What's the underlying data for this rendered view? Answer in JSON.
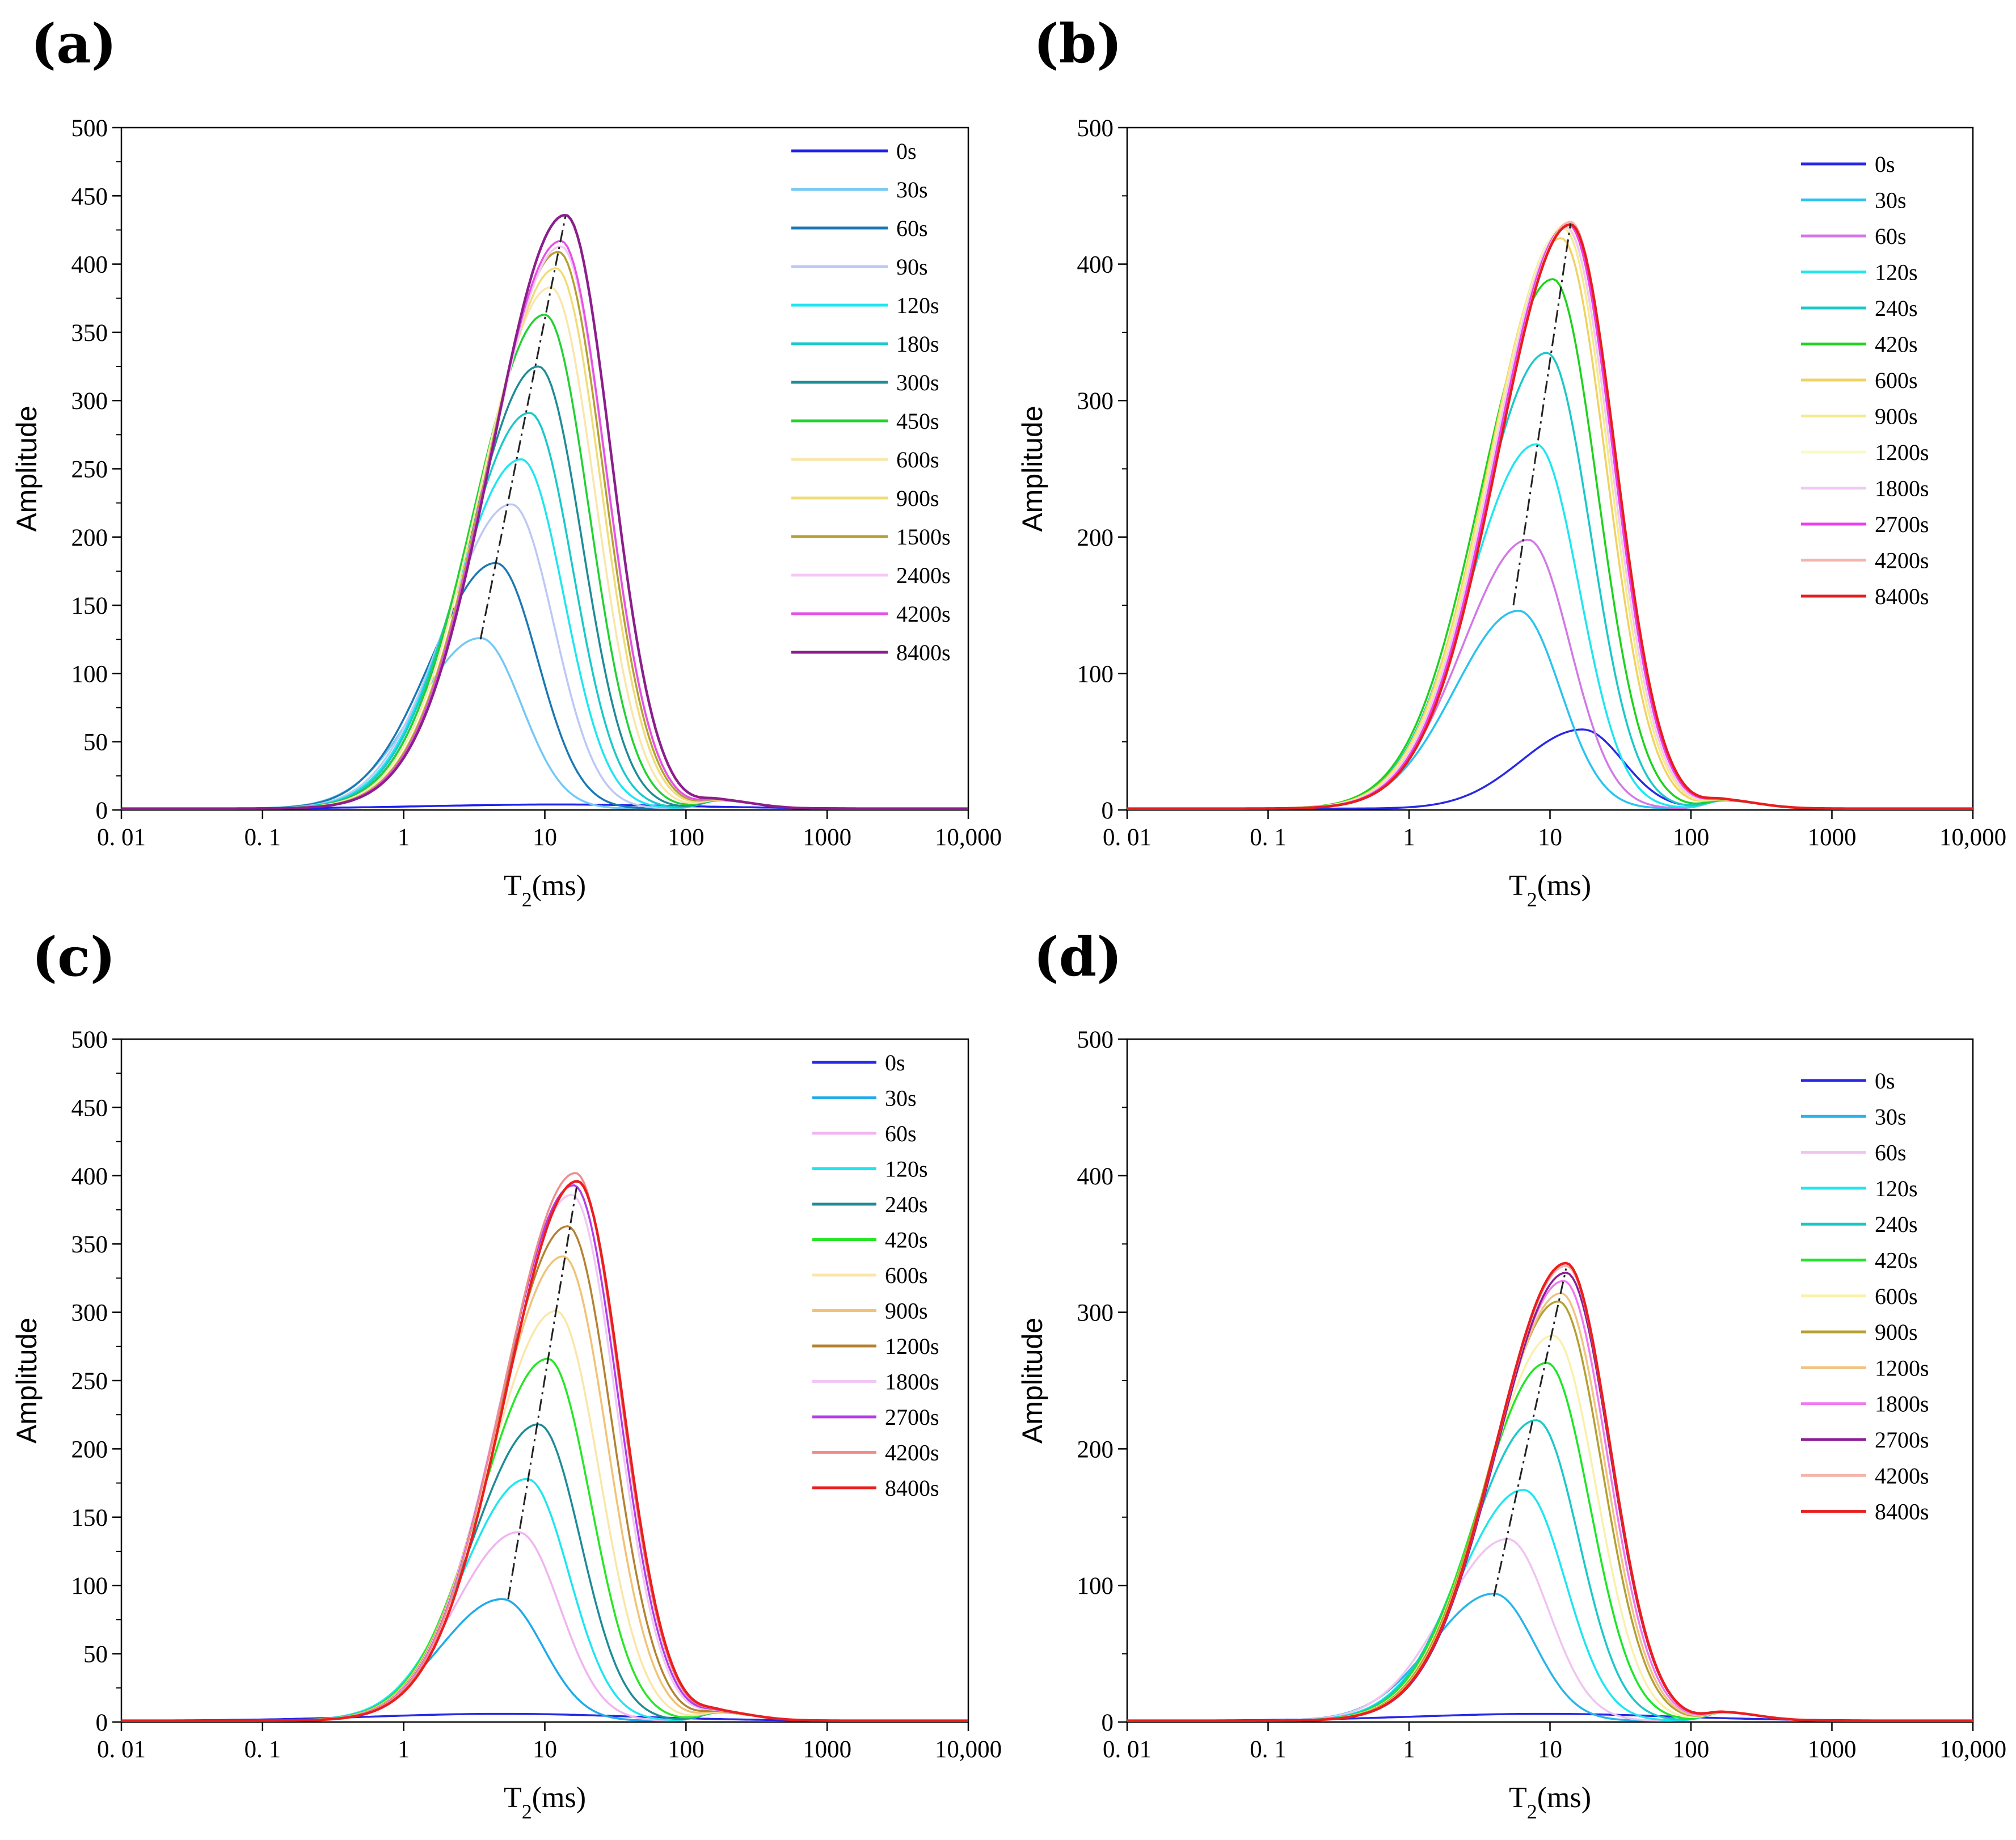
{
  "chart_data": [
    {
      "panel": "(a)",
      "type": "line",
      "xscale": "log",
      "xlim": [
        0.01,
        10000
      ],
      "ylim": [
        0,
        500
      ],
      "xticks": [
        0.01,
        0.1,
        1,
        10,
        100,
        1000,
        10000
      ],
      "xtick_labels": [
        "0. 01",
        "0. 1",
        "1",
        "10",
        "100",
        "1000",
        "10,000"
      ],
      "yticks": [
        0,
        50,
        100,
        150,
        200,
        250,
        300,
        350,
        400,
        450,
        500
      ],
      "ytick_labels": [
        "0",
        "50",
        "100",
        "150",
        "200",
        "250",
        "300",
        "350",
        "400",
        "450",
        "500"
      ],
      "ylabel": "Amplitude",
      "xlabel": "T",
      "xlabel_sub": "2",
      "xlabel_unit": "(ms)",
      "legend_position": "top-right",
      "trend_line": {
        "peak_t2_range": [
          3.5,
          14
        ],
        "peak_amp_range": [
          125,
          435
        ]
      },
      "series": [
        {
          "name": "0s",
          "color": "#1f1ff0",
          "peak_t2": 12,
          "peak_amp": 3
        },
        {
          "name": "30s",
          "color": "#73c8f5",
          "peak_t2": 3.5,
          "peak_amp": 125
        },
        {
          "name": "60s",
          "color": "#1a78b4",
          "peak_t2": 4.5,
          "peak_amp": 180
        },
        {
          "name": "90s",
          "color": "#bcc8f5",
          "peak_t2": 5.8,
          "peak_amp": 223
        },
        {
          "name": "120s",
          "color": "#1ee6f0",
          "peak_t2": 6.8,
          "peak_amp": 256
        },
        {
          "name": "180s",
          "color": "#1cc8c8",
          "peak_t2": 7.8,
          "peak_amp": 290
        },
        {
          "name": "300s",
          "color": "#1e8c96",
          "peak_t2": 9,
          "peak_amp": 324
        },
        {
          "name": "450s",
          "color": "#22d232",
          "peak_t2": 10,
          "peak_amp": 362
        },
        {
          "name": "600s",
          "color": "#fae6aa",
          "peak_t2": 11,
          "peak_amp": 382
        },
        {
          "name": "900s",
          "color": "#f0dc78",
          "peak_t2": 12,
          "peak_amp": 396
        },
        {
          "name": "1500s",
          "color": "#b4a032",
          "peak_t2": 12.5,
          "peak_amp": 408
        },
        {
          "name": "2400s",
          "color": "#f5c8f5",
          "peak_t2": 13,
          "peak_amp": 412
        },
        {
          "name": "4200s",
          "color": "#e650e6",
          "peak_t2": 13,
          "peak_amp": 416
        },
        {
          "name": "8400s",
          "color": "#8c1e8c",
          "peak_t2": 14,
          "peak_amp": 435
        }
      ]
    },
    {
      "panel": "(b)",
      "type": "line",
      "xscale": "log",
      "xlim": [
        0.01,
        10000
      ],
      "ylim": [
        0,
        500
      ],
      "xticks": [
        0.01,
        0.1,
        1,
        10,
        100,
        1000,
        10000
      ],
      "xtick_labels": [
        "0. 01",
        "0. 1",
        "1",
        "10",
        "100",
        "1000",
        "10,000"
      ],
      "yticks": [
        0,
        100,
        200,
        300,
        400,
        500
      ],
      "ytick_labels": [
        "0",
        "100",
        "200",
        "300",
        "400",
        "500"
      ],
      "ylabel": "Amplitude",
      "xlabel": "T",
      "xlabel_sub": "2",
      "xlabel_unit": "(ms)",
      "legend_position": "top-right",
      "trend_line": {
        "peak_t2_range": [
          5.5,
          14
        ],
        "peak_amp_range": [
          150,
          430
        ]
      },
      "series": [
        {
          "name": "0s",
          "color": "#2828e6",
          "peak_t2": 17,
          "peak_amp": 58
        },
        {
          "name": "30s",
          "color": "#28c3f0",
          "peak_t2": 6,
          "peak_amp": 145
        },
        {
          "name": "60s",
          "color": "#d278e6",
          "peak_t2": 7,
          "peak_amp": 197
        },
        {
          "name": "120s",
          "color": "#1ee6f0",
          "peak_t2": 8,
          "peak_amp": 267
        },
        {
          "name": "240s",
          "color": "#1cc8c8",
          "peak_t2": 9.5,
          "peak_amp": 334
        },
        {
          "name": "420s",
          "color": "#1ed21e",
          "peak_t2": 10.5,
          "peak_amp": 388
        },
        {
          "name": "600s",
          "color": "#f0d264",
          "peak_t2": 12,
          "peak_amp": 418
        },
        {
          "name": "900s",
          "color": "#f5eb8c",
          "peak_t2": 12.5,
          "peak_amp": 425
        },
        {
          "name": "1200s",
          "color": "#fafac8",
          "peak_t2": 13,
          "peak_amp": 428
        },
        {
          "name": "1800s",
          "color": "#f0c8f5",
          "peak_t2": 13,
          "peak_amp": 426
        },
        {
          "name": "2700s",
          "color": "#f03cf0",
          "peak_t2": 13.5,
          "peak_amp": 428
        },
        {
          "name": "4200s",
          "color": "#f5b4aa",
          "peak_t2": 14,
          "peak_amp": 430
        },
        {
          "name": "8400s",
          "color": "#e61e1e",
          "peak_t2": 14,
          "peak_amp": 428
        }
      ]
    },
    {
      "panel": "(c)",
      "type": "line",
      "xscale": "log",
      "xlim": [
        0.01,
        10000
      ],
      "ylim": [
        0,
        500
      ],
      "xticks": [
        0.01,
        0.1,
        1,
        10,
        100,
        1000,
        10000
      ],
      "xtick_labels": [
        "0. 01",
        "0. 1",
        "1",
        "10",
        "100",
        "1000",
        "10,000"
      ],
      "yticks": [
        0,
        50,
        100,
        150,
        200,
        250,
        300,
        350,
        400,
        450,
        500
      ],
      "ytick_labels": [
        "0",
        "50",
        "100",
        "150",
        "200",
        "250",
        "300",
        "350",
        "400",
        "450",
        "500"
      ],
      "ylabel": "Amplitude",
      "xlabel": "T",
      "xlabel_sub": "2",
      "xlabel_unit": "(ms)",
      "legend_position": "top-right",
      "trend_line": {
        "peak_t2_range": [
          5.5,
          17
        ],
        "peak_amp_range": [
          90,
          395
        ]
      },
      "series": [
        {
          "name": "0s",
          "color": "#2828e6",
          "peak_t2": 5,
          "peak_amp": 5
        },
        {
          "name": "30s",
          "color": "#1eaaeb",
          "peak_t2": 5,
          "peak_amp": 89
        },
        {
          "name": "60s",
          "color": "#f0b4f0",
          "peak_t2": 6.5,
          "peak_amp": 138
        },
        {
          "name": "120s",
          "color": "#1ee6f0",
          "peak_t2": 7.5,
          "peak_amp": 177
        },
        {
          "name": "240s",
          "color": "#1e8c96",
          "peak_t2": 9,
          "peak_amp": 217
        },
        {
          "name": "420s",
          "color": "#28e628",
          "peak_t2": 10.5,
          "peak_amp": 265
        },
        {
          "name": "600s",
          "color": "#fae6aa",
          "peak_t2": 12,
          "peak_amp": 300
        },
        {
          "name": "900s",
          "color": "#f0c378",
          "peak_t2": 13.5,
          "peak_amp": 340
        },
        {
          "name": "1200s",
          "color": "#b48232",
          "peak_t2": 14.5,
          "peak_amp": 362
        },
        {
          "name": "1800s",
          "color": "#f0c8f5",
          "peak_t2": 15.5,
          "peak_amp": 385
        },
        {
          "name": "2700s",
          "color": "#b43ceb",
          "peak_t2": 16,
          "peak_amp": 392
        },
        {
          "name": "4200s",
          "color": "#f08c8c",
          "peak_t2": 16.5,
          "peak_amp": 401
        },
        {
          "name": "8400s",
          "color": "#eb1e1e",
          "peak_t2": 17,
          "peak_amp": 395
        }
      ]
    },
    {
      "panel": "(d)",
      "type": "line",
      "xscale": "log",
      "xlim": [
        0.01,
        10000
      ],
      "ylim": [
        0,
        500
      ],
      "xticks": [
        0.01,
        0.1,
        1,
        10,
        100,
        1000,
        10000
      ],
      "xtick_labels": [
        "0. 01",
        "0. 1",
        "1",
        "10",
        "100",
        "1000",
        "10,000"
      ],
      "yticks": [
        0,
        100,
        200,
        300,
        400,
        500
      ],
      "ytick_labels": [
        "0",
        "100",
        "200",
        "300",
        "400",
        "500"
      ],
      "ylabel": "Amplitude",
      "xlabel": "T",
      "xlabel_sub": "2",
      "xlabel_unit": "(ms)",
      "legend_position": "top-right",
      "trend_line": {
        "peak_t2_range": [
          4,
          13
        ],
        "peak_amp_range": [
          92,
          332
        ]
      },
      "series": [
        {
          "name": "0s",
          "color": "#2828e6",
          "peak_t2": 9,
          "peak_amp": 5
        },
        {
          "name": "30s",
          "color": "#28b4eb",
          "peak_t2": 4,
          "peak_amp": 93
        },
        {
          "name": "60s",
          "color": "#f0c3f0",
          "peak_t2": 5,
          "peak_amp": 133
        },
        {
          "name": "120s",
          "color": "#1ee6f0",
          "peak_t2": 6.5,
          "peak_amp": 169
        },
        {
          "name": "240s",
          "color": "#1cc8c8",
          "peak_t2": 8,
          "peak_amp": 220
        },
        {
          "name": "420s",
          "color": "#1ee628",
          "peak_t2": 9.5,
          "peak_amp": 262
        },
        {
          "name": "600s",
          "color": "#faf0aa",
          "peak_t2": 10.5,
          "peak_amp": 282
        },
        {
          "name": "900s",
          "color": "#b4a032",
          "peak_t2": 11.5,
          "peak_amp": 307
        },
        {
          "name": "1200s",
          "color": "#f0c382",
          "peak_t2": 12,
          "peak_amp": 313
        },
        {
          "name": "1800s",
          "color": "#f078f0",
          "peak_t2": 12.5,
          "peak_amp": 322
        },
        {
          "name": "2700s",
          "color": "#8c1e96",
          "peak_t2": 13,
          "peak_amp": 328
        },
        {
          "name": "4200s",
          "color": "#f5b4aa",
          "peak_t2": 13,
          "peak_amp": 333
        },
        {
          "name": "8400s",
          "color": "#eb1e1e",
          "peak_t2": 13,
          "peak_amp": 335
        }
      ]
    }
  ]
}
